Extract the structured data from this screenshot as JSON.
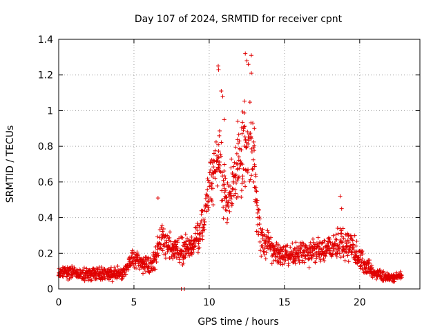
{
  "chart_data": {
    "type": "scatter",
    "title": "Day 107 of 2024, SRMTID for receiver cpnt",
    "xlabel": "GPS time / hours",
    "ylabel": "SRMTID / TECUs",
    "xlim": [
      0,
      24
    ],
    "ylim": [
      0,
      1.4
    ],
    "xticks": [
      0,
      5,
      10,
      15,
      20
    ],
    "xtick_labels": [
      "0",
      "5",
      "10",
      "15",
      "20"
    ],
    "yticks": [
      0,
      0.2,
      0.4,
      0.6,
      0.8,
      1.0,
      1.2,
      1.4
    ],
    "ytick_labels": [
      "0",
      "0.2",
      "0.4",
      "0.6",
      "0.8",
      "1",
      "1.2",
      "1.4"
    ],
    "grid": true,
    "marker": "+",
    "series": [
      {
        "name": "SRMTID",
        "color": "#e00000",
        "envelope": [
          {
            "x": 0.0,
            "y": 0.09,
            "spread": 0.03
          },
          {
            "x": 0.7,
            "y": 0.1,
            "spread": 0.035
          },
          {
            "x": 1.5,
            "y": 0.08,
            "spread": 0.03
          },
          {
            "x": 2.5,
            "y": 0.09,
            "spread": 0.035
          },
          {
            "x": 3.5,
            "y": 0.08,
            "spread": 0.03
          },
          {
            "x": 4.3,
            "y": 0.09,
            "spread": 0.03
          },
          {
            "x": 4.8,
            "y": 0.17,
            "spread": 0.04
          },
          {
            "x": 5.5,
            "y": 0.15,
            "spread": 0.05
          },
          {
            "x": 6.2,
            "y": 0.13,
            "spread": 0.05
          },
          {
            "x": 6.8,
            "y": 0.27,
            "spread": 0.07
          },
          {
            "x": 7.5,
            "y": 0.22,
            "spread": 0.06
          },
          {
            "x": 8.3,
            "y": 0.22,
            "spread": 0.07
          },
          {
            "x": 9.0,
            "y": 0.25,
            "spread": 0.07
          },
          {
            "x": 9.6,
            "y": 0.35,
            "spread": 0.1
          },
          {
            "x": 10.0,
            "y": 0.55,
            "spread": 0.12
          },
          {
            "x": 10.6,
            "y": 0.75,
            "spread": 0.22
          },
          {
            "x": 11.2,
            "y": 0.45,
            "spread": 0.12
          },
          {
            "x": 11.8,
            "y": 0.65,
            "spread": 0.15
          },
          {
            "x": 12.5,
            "y": 0.85,
            "spread": 0.25
          },
          {
            "x": 12.9,
            "y": 0.75,
            "spread": 0.2
          },
          {
            "x": 13.4,
            "y": 0.28,
            "spread": 0.08
          },
          {
            "x": 14.0,
            "y": 0.25,
            "spread": 0.07
          },
          {
            "x": 14.6,
            "y": 0.18,
            "spread": 0.06
          },
          {
            "x": 15.5,
            "y": 0.2,
            "spread": 0.06
          },
          {
            "x": 16.5,
            "y": 0.2,
            "spread": 0.06
          },
          {
            "x": 17.5,
            "y": 0.21,
            "spread": 0.06
          },
          {
            "x": 18.7,
            "y": 0.26,
            "spread": 0.08
          },
          {
            "x": 19.5,
            "y": 0.24,
            "spread": 0.07
          },
          {
            "x": 20.3,
            "y": 0.14,
            "spread": 0.05
          },
          {
            "x": 21.0,
            "y": 0.09,
            "spread": 0.03
          },
          {
            "x": 22.0,
            "y": 0.06,
            "spread": 0.02
          },
          {
            "x": 22.8,
            "y": 0.08,
            "spread": 0.02
          }
        ],
        "outliers": [
          {
            "x": 6.6,
            "y": 0.51
          },
          {
            "x": 8.15,
            "y": 0.0
          },
          {
            "x": 8.35,
            "y": 0.0
          },
          {
            "x": 10.6,
            "y": 1.25
          },
          {
            "x": 10.62,
            "y": 1.23
          },
          {
            "x": 10.8,
            "y": 1.11
          },
          {
            "x": 10.9,
            "y": 1.08
          },
          {
            "x": 11.0,
            "y": 0.95
          },
          {
            "x": 11.5,
            "y": 0.48
          },
          {
            "x": 11.9,
            "y": 0.94
          },
          {
            "x": 12.0,
            "y": 0.83
          },
          {
            "x": 12.4,
            "y": 1.32
          },
          {
            "x": 12.5,
            "y": 1.28
          },
          {
            "x": 12.6,
            "y": 1.26
          },
          {
            "x": 12.8,
            "y": 1.31
          },
          {
            "x": 12.8,
            "y": 1.21
          },
          {
            "x": 12.9,
            "y": 0.93
          },
          {
            "x": 13.0,
            "y": 0.9
          },
          {
            "x": 18.7,
            "y": 0.52
          },
          {
            "x": 18.8,
            "y": 0.45
          }
        ]
      }
    ]
  }
}
